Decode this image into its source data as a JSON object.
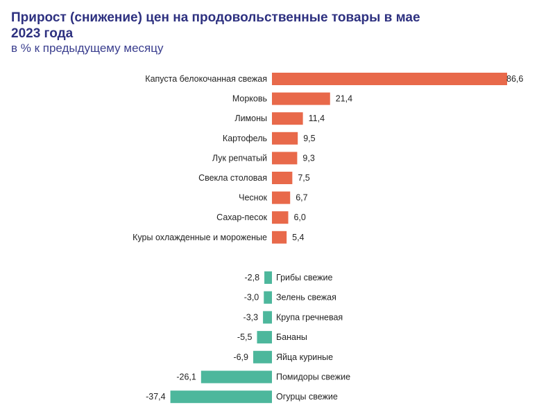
{
  "chart_data": {
    "type": "bar",
    "orientation": "horizontal",
    "title": "Прирост (снижение) цен на продовольственные товары в мае 2023 года",
    "subtitle": "в % к предыдущему месяцу",
    "grid": false,
    "legend": "none",
    "colors": {
      "positive": "#e8694a",
      "negative": "#4db79c"
    },
    "categories": [
      "Капуста белокочанная свежая",
      "Морковь",
      "Лимоны",
      "Картофель",
      "Лук репчатый",
      "Свекла столовая",
      "Чеснок",
      "Сахар-песок",
      "Куры охлажденные и мороженые",
      "Грибы свежие",
      "Зелень свежая",
      "Крупа гречневая",
      "Бананы",
      "Яйца куриные",
      "Помидоры свежие",
      "Огурцы свежие"
    ],
    "values": [
      86.6,
      21.4,
      11.4,
      9.5,
      9.3,
      7.5,
      6.7,
      6.0,
      5.4,
      -2.8,
      -3.0,
      -3.3,
      -5.5,
      -6.9,
      -26.1,
      -37.4
    ],
    "data_labels": [
      "86,6",
      "21,4",
      "11,4",
      "9,5",
      "9,3",
      "7,5",
      "6,7",
      "6,0",
      "5,4",
      "-2,8",
      "-3,0",
      "-3,3",
      "-5,5",
      "-6,9",
      "-26,1",
      "-37,4"
    ]
  }
}
